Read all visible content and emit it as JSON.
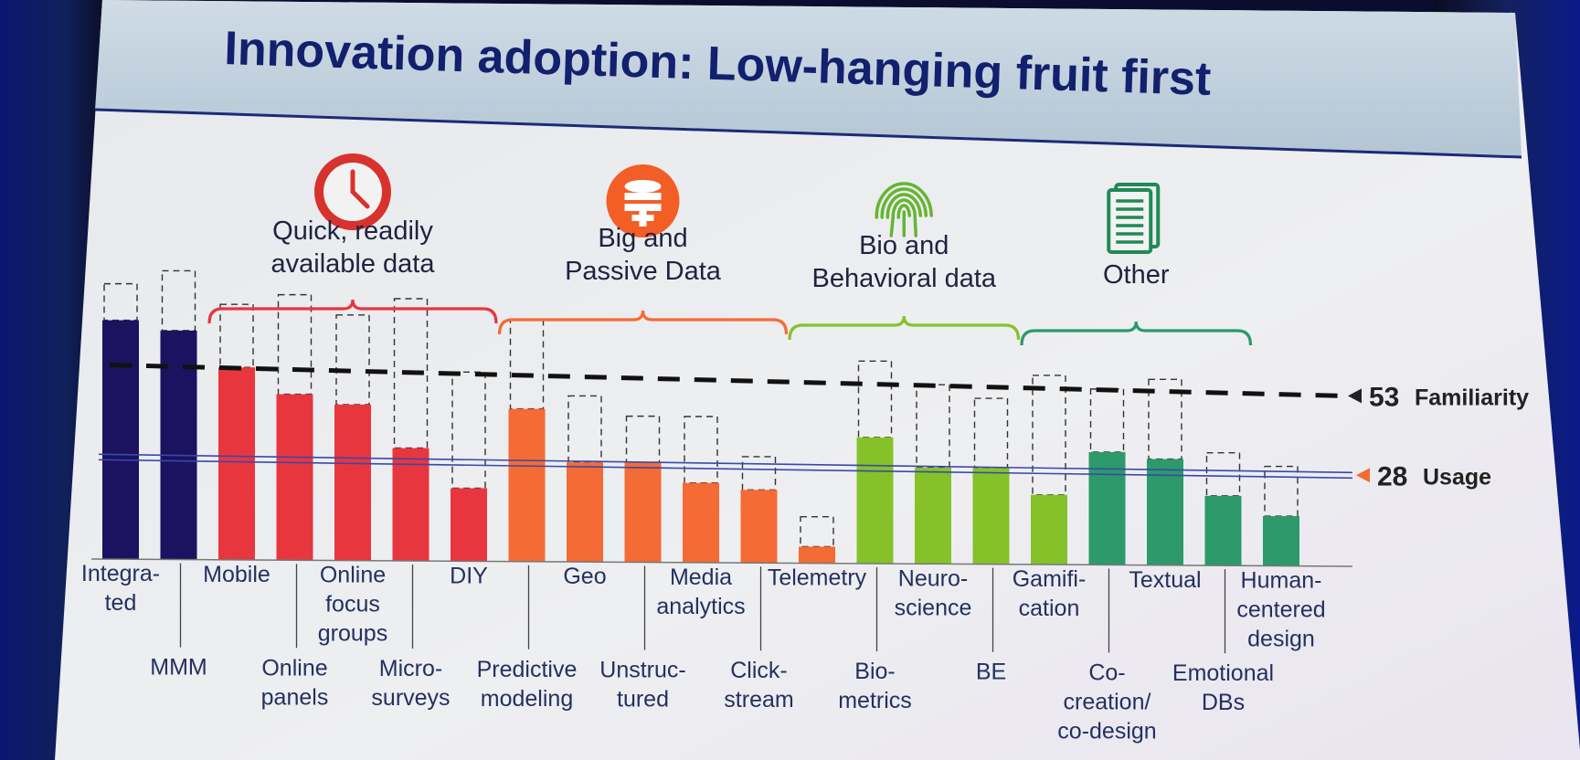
{
  "slide": {
    "title": "Innovation adoption: Low-hanging fruit first"
  },
  "colors": {
    "title": "#12206e",
    "navy": "#1b1260",
    "red": "#e8363f",
    "orange": "#f46b35",
    "lime": "#85c22a",
    "teal": "#2c9a6a",
    "quick_icon": "#d8322f",
    "big_icon": "#f25e26",
    "bio_icon": "#66b531",
    "other_icon": "#1f8a55"
  },
  "groups": [
    {
      "label_lines": [
        "Quick, readily",
        "available data"
      ],
      "icon": "clock-icon",
      "color": "#e8363f",
      "from": 2,
      "to": 6
    },
    {
      "label_lines": [
        "Big and",
        "Passive Data"
      ],
      "icon": "database-icon",
      "color": "#f46b35",
      "from": 7,
      "to": 11
    },
    {
      "label_lines": [
        "Bio and",
        "Behavioral data"
      ],
      "icon": "fingerprint-icon",
      "color": "#85c22a",
      "from": 12,
      "to": 15
    },
    {
      "label_lines": [
        "Other"
      ],
      "icon": "document-icon",
      "color": "#2c9a6a",
      "from": 16,
      "to": 19
    }
  ],
  "chart_data": {
    "type": "bar",
    "title": "Innovation adoption: Low-hanging fruit first",
    "xlabel": "",
    "ylabel": "",
    "ylim": [
      0,
      90
    ],
    "grid": false,
    "categories": [
      "Integrated",
      "MMM",
      "Mobile",
      "Online panels",
      "Online focus groups",
      "Micro-surveys",
      "DIY",
      "Predictive modeling",
      "Geo",
      "Unstructured",
      "Media analytics",
      "Click-stream",
      "Telemetry",
      "Biometrics",
      "Neuroscience",
      "BE",
      "Gamification",
      "Co-creation/co-design",
      "Textual",
      "Emotional DBs",
      "Human-centered design"
    ],
    "series": [
      {
        "name": "Usage",
        "values": [
          72,
          69,
          58,
          50,
          47,
          34,
          22,
          46,
          30,
          30,
          24,
          22,
          5,
          38,
          29,
          29,
          21,
          34,
          32,
          21,
          15
        ]
      },
      {
        "name": "Familiarity",
        "values": [
          83,
          87,
          77,
          80,
          74,
          79,
          57,
          73,
          50,
          44,
          44,
          32,
          14,
          61,
          54,
          50,
          57,
          53,
          56,
          34,
          30
        ]
      }
    ],
    "category_labels": [
      {
        "lines": [
          "Integra-",
          "ted"
        ],
        "row": "top"
      },
      {
        "lines": [
          "MMM"
        ],
        "row": "bottom"
      },
      {
        "lines": [
          "Mobile"
        ],
        "row": "top"
      },
      {
        "lines": [
          "Online",
          "panels"
        ],
        "row": "bottom"
      },
      {
        "lines": [
          "Online",
          "focus",
          "groups"
        ],
        "row": "top"
      },
      {
        "lines": [
          "Micro-",
          "surveys"
        ],
        "row": "bottom"
      },
      {
        "lines": [
          "DIY"
        ],
        "row": "top"
      },
      {
        "lines": [
          "Predictive",
          "modeling"
        ],
        "row": "bottom"
      },
      {
        "lines": [
          "Geo"
        ],
        "row": "top"
      },
      {
        "lines": [
          "Unstruc-",
          "tured"
        ],
        "row": "bottom"
      },
      {
        "lines": [
          "Media",
          "analytics"
        ],
        "row": "top"
      },
      {
        "lines": [
          "Click-",
          "stream"
        ],
        "row": "bottom"
      },
      {
        "lines": [
          "Telemetry"
        ],
        "row": "top"
      },
      {
        "lines": [
          "Bio-",
          "metrics"
        ],
        "row": "bottom"
      },
      {
        "lines": [
          "Neuro-",
          "science"
        ],
        "row": "top"
      },
      {
        "lines": [
          "BE"
        ],
        "row": "bottom"
      },
      {
        "lines": [
          "Gamifi-",
          "cation"
        ],
        "row": "top"
      },
      {
        "lines": [
          "Co-",
          "creation/",
          "co-design"
        ],
        "row": "bottom"
      },
      {
        "lines": [
          "Textual"
        ],
        "row": "top"
      },
      {
        "lines": [
          "Emotional",
          "DBs"
        ],
        "row": "bottom"
      },
      {
        "lines": [
          "Human-",
          "centered",
          "design"
        ],
        "row": "top"
      }
    ],
    "bar_colors": [
      "navy",
      "navy",
      "red",
      "red",
      "red",
      "red",
      "red",
      "orange",
      "orange",
      "orange",
      "orange",
      "orange",
      "orange",
      "lime",
      "lime",
      "lime",
      "lime",
      "teal",
      "teal",
      "teal",
      "teal"
    ],
    "reference_lines": [
      {
        "name": "Familiarity",
        "value": 53,
        "label_value": "53",
        "label_text": "Familiarity",
        "style": "dashed"
      },
      {
        "name": "Usage",
        "value": 28,
        "label_value": "28",
        "label_text": "Usage",
        "style": "double-line"
      }
    ],
    "legend": "none"
  }
}
